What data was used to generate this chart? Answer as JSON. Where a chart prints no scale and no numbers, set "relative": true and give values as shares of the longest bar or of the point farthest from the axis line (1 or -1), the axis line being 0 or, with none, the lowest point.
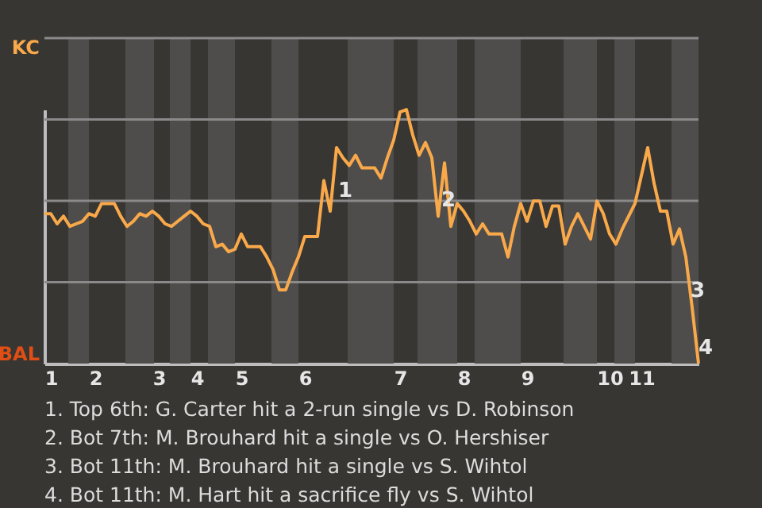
{
  "chart_data": {
    "type": "line",
    "relative": true,
    "categories": [
      null,
      "1",
      null,
      null,
      null,
      null,
      null,
      null,
      "2",
      null,
      null,
      null,
      null,
      null,
      null,
      null,
      null,
      null,
      "3",
      null,
      null,
      null,
      null,
      null,
      "4",
      null,
      null,
      null,
      null,
      null,
      null,
      "5",
      null,
      null,
      null,
      null,
      null,
      null,
      null,
      null,
      null,
      "6",
      null,
      null,
      null,
      null,
      null,
      null,
      null,
      null,
      null,
      null,
      null,
      null,
      null,
      null,
      "7",
      null,
      null,
      null,
      null,
      null,
      null,
      null,
      null,
      null,
      "8",
      null,
      null,
      null,
      null,
      null,
      null,
      null,
      null,
      null,
      "9",
      null,
      null,
      null,
      null,
      null,
      null,
      null,
      null,
      null,
      null,
      null,
      null,
      "10",
      null,
      null,
      null,
      null,
      "11",
      null,
      null,
      null,
      null,
      null,
      null,
      null,
      null,
      null
    ],
    "grid": "y",
    "line_style": "solid",
    "series": [
      {
        "color": "#f9a94a",
        "values": [
          0.59,
          0.59,
          0.55,
          0.58,
          0.54,
          0.55,
          0.56,
          0.59,
          0.58,
          0.63,
          0.63,
          0.63,
          0.58,
          0.54,
          0.56,
          0.59,
          0.58,
          0.6,
          0.58,
          0.55,
          0.54,
          0.56,
          0.58,
          0.6,
          0.58,
          0.55,
          0.54,
          0.46,
          0.47,
          0.44,
          0.45,
          0.51,
          0.46,
          0.46,
          0.46,
          0.42,
          0.37,
          0.29,
          0.29,
          0.36,
          0.42,
          0.5,
          0.5,
          0.5,
          0.72,
          0.6,
          0.85,
          0.81,
          0.78,
          0.82,
          0.77,
          0.77,
          0.77,
          0.73,
          0.81,
          0.88,
          0.99,
          1,
          0.9,
          0.82,
          0.87,
          0.81,
          0.58,
          0.79,
          0.54,
          0.63,
          0.6,
          0.56,
          0.51,
          0.55,
          0.51,
          0.51,
          0.51,
          0.42,
          0.54,
          0.63,
          0.56,
          0.64,
          0.64,
          0.54,
          0.62,
          0.62,
          0.47,
          0.54,
          0.59,
          0.54,
          0.49,
          0.64,
          0.59,
          0.51,
          0.47,
          0.53,
          0.58,
          0.63,
          0.74,
          0.85,
          0.71,
          0.6,
          0.6,
          0.47,
          0.53,
          0.42,
          0.22,
          0
        ]
      }
    ],
    "annotations": [
      "KC",
      "BAL",
      "1",
      "2",
      "3",
      "4",
      "1. Top 6th: G. Carter hit a 2-run single vs D. Robinson",
      "2. Bot 7th: M. Brouhard hit a single vs O. Hershiser",
      "3. Bot 11th: M. Brouhard hit a single vs S. Wihtol",
      "4. Bot 11th: M. Hart hit a sacrifice fly vs S. Wihtol"
    ]
  }
}
